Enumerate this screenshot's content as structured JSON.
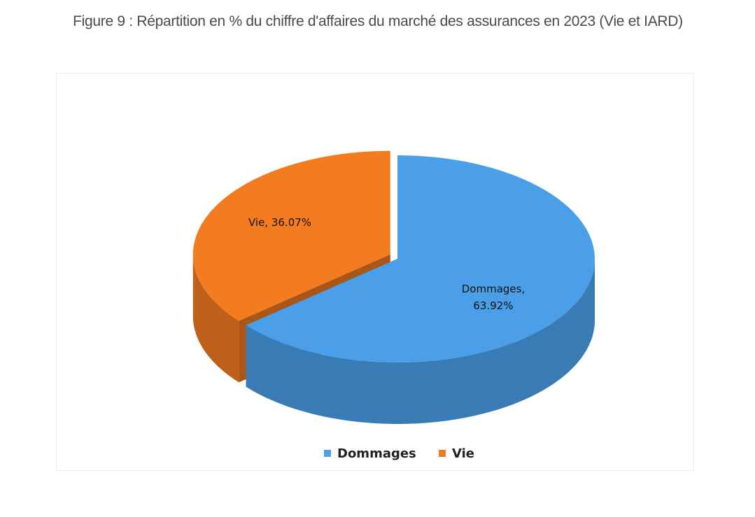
{
  "chart_data": {
    "type": "pie3d",
    "title": "Figure 9 : Répartition en % du chiffre d'affaires du marché des assurances en 2023 (Vie et IARD)",
    "categories": [
      "Dommages",
      "Vie"
    ],
    "values": [
      63.92,
      36.07
    ],
    "value_labels": [
      "Dommages, 63.92%",
      "Vie, 36.07%"
    ],
    "colors": [
      "#4a9fe8",
      "#f47c20"
    ],
    "legend": "bottom"
  }
}
